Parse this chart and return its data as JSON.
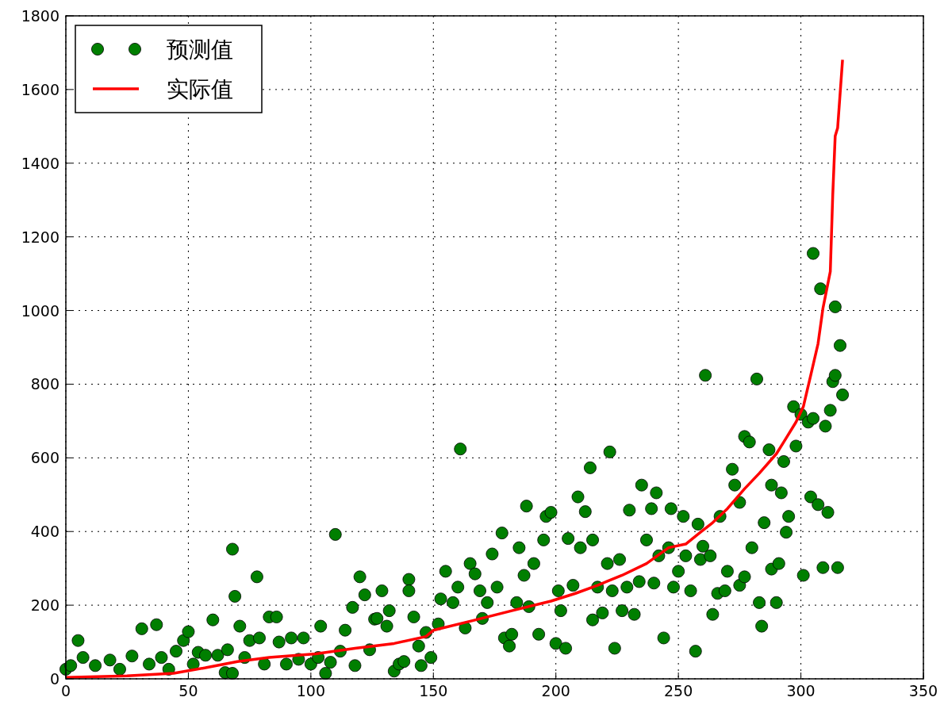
{
  "chart_data": {
    "type": "scatter",
    "xlim": [
      0,
      350
    ],
    "ylim": [
      0,
      1800
    ],
    "xticks": [
      0,
      50,
      100,
      150,
      200,
      250,
      300,
      350
    ],
    "yticks": [
      0,
      200,
      400,
      600,
      800,
      1000,
      1200,
      1400,
      1600,
      1800
    ],
    "grid": true,
    "legend": "top left",
    "series": [
      {
        "name": "预测值",
        "marker": "circle",
        "color": "#007f00",
        "x": [
          0,
          5,
          7,
          2,
          12,
          18,
          22,
          27,
          31,
          34,
          37,
          39,
          42,
          45,
          48,
          50,
          52,
          54,
          57,
          60,
          62,
          65,
          66,
          68,
          68,
          69,
          71,
          73,
          75,
          78,
          79,
          81,
          83,
          86,
          87,
          90,
          92,
          95,
          97,
          100,
          103,
          104,
          106,
          108,
          110,
          112,
          114,
          117,
          118,
          120,
          122,
          124,
          126,
          127,
          129,
          131,
          132,
          134,
          136,
          138,
          140,
          140,
          142,
          144,
          145,
          147,
          149,
          152,
          153,
          155,
          158,
          160,
          161,
          163,
          165,
          167,
          169,
          170,
          172,
          174,
          176,
          178,
          179,
          181,
          182,
          184,
          185,
          187,
          188,
          189,
          191,
          193,
          195,
          196,
          198,
          200,
          201,
          202,
          204,
          205,
          207,
          209,
          210,
          212,
          214,
          215,
          215,
          217,
          219,
          221,
          222,
          223,
          224,
          226,
          227,
          229,
          230,
          232,
          234,
          235,
          237,
          239,
          240,
          241,
          242,
          244,
          246,
          247,
          248,
          250,
          252,
          253,
          255,
          257,
          258,
          259,
          260,
          261,
          263,
          264,
          266,
          267,
          269,
          270,
          272,
          273,
          275,
          275,
          277,
          277,
          279,
          280,
          282,
          283,
          284,
          285,
          287,
          288,
          288,
          290,
          291,
          292,
          293,
          294,
          295,
          297,
          298,
          300,
          301,
          303,
          304,
          305,
          305,
          307,
          308,
          309,
          310,
          311,
          312,
          313,
          314,
          314,
          315,
          316,
          317
        ],
        "values": [
          26,
          104,
          58,
          36,
          36,
          51,
          26,
          62,
          136,
          40,
          147,
          58,
          26,
          75,
          104,
          128,
          40,
          72,
          64,
          160,
          64,
          17,
          79,
          15,
          352,
          224,
          143,
          58,
          104,
          277,
          111,
          40,
          168,
          168,
          100,
          40,
          111,
          53,
          111,
          40,
          58,
          143,
          15,
          45,
          392,
          75,
          132,
          194,
          36,
          277,
          228,
          79,
          162,
          164,
          239,
          143,
          185,
          21,
          40,
          47,
          270,
          239,
          168,
          89,
          36,
          126,
          58,
          149,
          217,
          292,
          207,
          249,
          624,
          138,
          313,
          285,
          239,
          164,
          207,
          339,
          249,
          396,
          111,
          89,
          121,
          207,
          356,
          281,
          469,
          196,
          313,
          121,
          377,
          441,
          452,
          96,
          239,
          185,
          83,
          381,
          254,
          494,
          356,
          454,
          573,
          160,
          377,
          249,
          179,
          313,
          616,
          239,
          83,
          324,
          185,
          249,
          458,
          175,
          264,
          526,
          377,
          462,
          260,
          505,
          334,
          111,
          356,
          462,
          249,
          292,
          441,
          334,
          239,
          75,
          420,
          324,
          360,
          824,
          334,
          175,
          232,
          441,
          239,
          292,
          569,
          526,
          254,
          479,
          277,
          658,
          643,
          356,
          814,
          207,
          143,
          424,
          622,
          526,
          298,
          207,
          313,
          505,
          590,
          398,
          441,
          739,
          632,
          718,
          281,
          697,
          494,
          1155,
          707,
          473,
          1059,
          302,
          686,
          452,
          729,
          807,
          1010,
          824,
          302,
          905,
          771
        ]
      },
      {
        "name": "实际值",
        "type": "line",
        "line_style": "solid",
        "color": "#ff0000",
        "x": [
          0,
          25,
          44,
          57,
          70,
          83,
          102,
          118,
          134,
          147,
          150,
          166,
          182,
          198,
          208,
          217,
          227,
          237,
          246,
          253,
          259,
          264,
          270,
          277,
          283,
          290,
          293,
          298,
          301,
          304,
          307,
          309,
          312,
          313,
          314,
          315,
          317
        ],
        "values": [
          4,
          8,
          15,
          30,
          47,
          58,
          68,
          83,
          96,
          115,
          132,
          158,
          185,
          211,
          232,
          254,
          281,
          313,
          356,
          366,
          398,
          424,
          462,
          516,
          558,
          611,
          643,
          697,
          739,
          824,
          910,
          1006,
          1106,
          1314,
          1474,
          1496,
          1681
        ]
      }
    ]
  }
}
